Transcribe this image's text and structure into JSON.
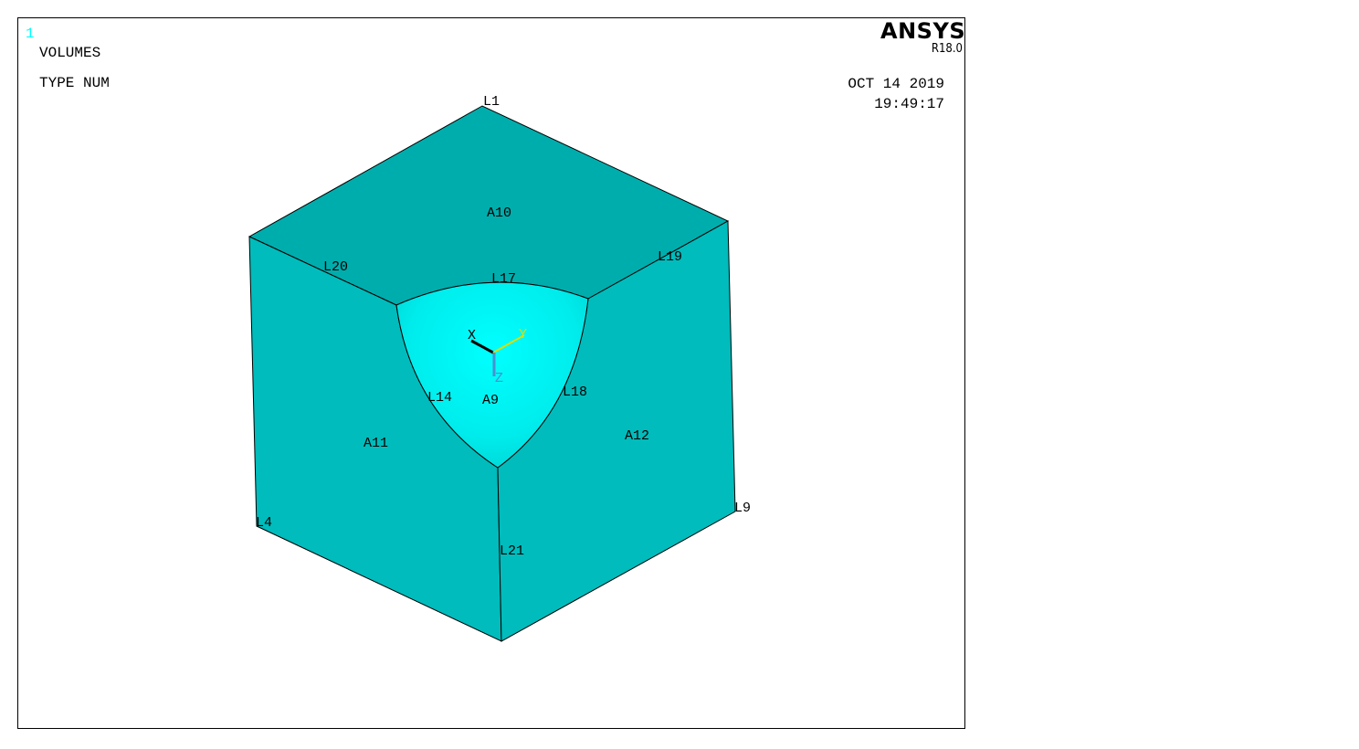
{
  "window": {
    "number": "1",
    "line1": "VOLUMES",
    "line2": "TYPE NUM"
  },
  "logo": {
    "brand": "ANSYS",
    "version": "R18.0"
  },
  "timestamp": {
    "date": "OCT 14 2019",
    "time": "19:49:17"
  },
  "colors": {
    "face": "#00bcbc",
    "top_face": "#00adad",
    "sphere_center": "#00ffff",
    "sphere_edge": "#00c4c4",
    "triad_x": "#000000",
    "triad_y": "#dddd00",
    "triad_z": "#4a90d0"
  },
  "labels": {
    "lines": {
      "L1": "L1",
      "L20": "L20",
      "L17": "L17",
      "L19": "L19",
      "L14": "L14",
      "L18": "L18",
      "L4": "L4",
      "L9": "L9",
      "L21": "L21"
    },
    "areas": {
      "A10": "A10",
      "A9": "A9",
      "A11": "A11",
      "A12": "A12"
    },
    "triad": {
      "x": "X",
      "y": "Y",
      "z": "Z"
    }
  }
}
